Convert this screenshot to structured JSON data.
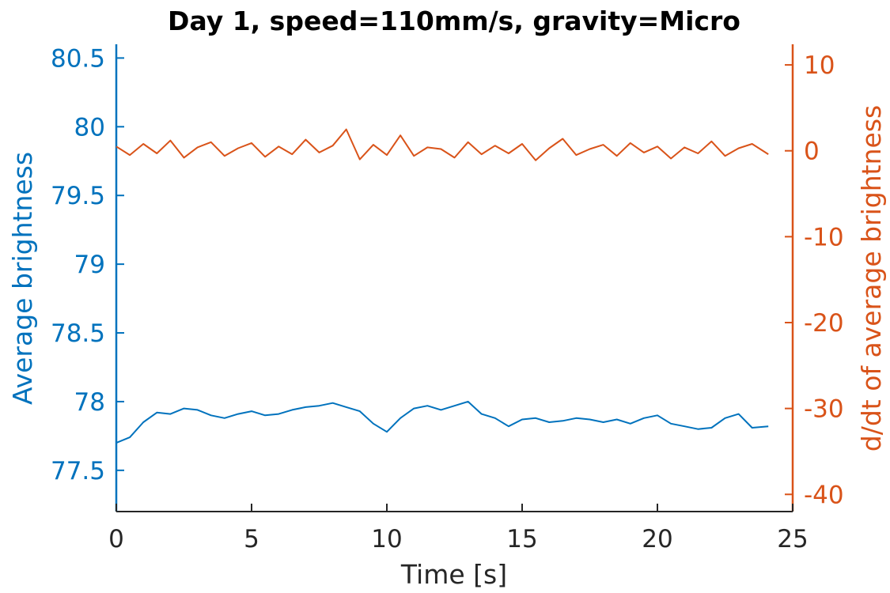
{
  "chart_data": {
    "type": "line",
    "title": "Day 1, speed=110mm/s, gravity=Micro",
    "xlabel": "Time [s]",
    "ylabel_left": "Average brightness",
    "ylabel_right": "d/dt of average brightness",
    "xlim": [
      0,
      25
    ],
    "ylim_left": [
      77.2,
      80.6
    ],
    "ylim_right": [
      -42,
      12.4
    ],
    "x_ticks": [
      "0",
      "5",
      "10",
      "15",
      "20",
      "25"
    ],
    "y_left_ticks": [
      "77.5",
      "78",
      "78.5",
      "79",
      "79.5",
      "80",
      "80.5"
    ],
    "y_right_ticks": [
      "-40",
      "-30",
      "-20",
      "-10",
      "0",
      "10"
    ],
    "grid": false,
    "legend": "none",
    "colors": {
      "left": "#0072BD",
      "right": "#D95319",
      "axis": "#262626"
    },
    "series": [
      {
        "axis": "left",
        "x": [
          0,
          0.5,
          1.0,
          1.5,
          2.0,
          2.5,
          3.0,
          3.5,
          4.0,
          4.5,
          5.0,
          5.5,
          6.0,
          6.5,
          7.0,
          7.5,
          8.0,
          8.5,
          9.0,
          9.5,
          10.0,
          10.5,
          11.0,
          11.5,
          12.0,
          12.5,
          13.0,
          13.5,
          14.0,
          14.5,
          15.0,
          15.5,
          16.0,
          16.5,
          17.0,
          17.5,
          18.0,
          18.5,
          19.0,
          19.5,
          20.0,
          20.5,
          21.0,
          21.5,
          22.0,
          22.5,
          23.0,
          23.5,
          24.1
        ],
        "y": [
          77.7,
          77.74,
          77.85,
          77.92,
          77.91,
          77.95,
          77.94,
          77.9,
          77.88,
          77.91,
          77.93,
          77.9,
          77.91,
          77.94,
          77.96,
          77.97,
          77.99,
          77.96,
          77.93,
          77.84,
          77.78,
          77.88,
          77.95,
          77.97,
          77.94,
          77.97,
          78.0,
          77.91,
          77.88,
          77.82,
          77.87,
          77.88,
          77.85,
          77.86,
          77.88,
          77.87,
          77.85,
          77.87,
          77.84,
          77.88,
          77.9,
          77.84,
          77.82,
          77.8,
          77.81,
          77.88,
          77.91,
          77.81,
          77.82
        ]
      },
      {
        "axis": "right",
        "x": [
          0,
          0.5,
          1.0,
          1.5,
          2.0,
          2.5,
          3.0,
          3.5,
          4.0,
          4.5,
          5.0,
          5.5,
          6.0,
          6.5,
          7.0,
          7.5,
          8.0,
          8.5,
          9.0,
          9.5,
          10.0,
          10.5,
          11.0,
          11.5,
          12.0,
          12.5,
          13.0,
          13.5,
          14.0,
          14.5,
          15.0,
          15.5,
          16.0,
          16.5,
          17.0,
          17.5,
          18.0,
          18.5,
          19.0,
          19.5,
          20.0,
          20.5,
          21.0,
          21.5,
          22.0,
          22.5,
          23.0,
          23.5,
          24.1
        ],
        "y": [
          0.5,
          -0.5,
          0.8,
          -0.3,
          1.2,
          -0.8,
          0.4,
          1.0,
          -0.6,
          0.3,
          0.9,
          -0.7,
          0.5,
          -0.4,
          1.3,
          -0.2,
          0.6,
          2.5,
          -1.0,
          0.7,
          -0.5,
          1.8,
          -0.6,
          0.4,
          0.2,
          -0.8,
          1.0,
          -0.4,
          0.6,
          -0.3,
          0.8,
          -1.1,
          0.3,
          1.4,
          -0.5,
          0.2,
          0.7,
          -0.6,
          0.9,
          -0.2,
          0.5,
          -0.9,
          0.4,
          -0.3,
          1.1,
          -0.6,
          0.3,
          0.8,
          -0.4
        ]
      }
    ]
  }
}
